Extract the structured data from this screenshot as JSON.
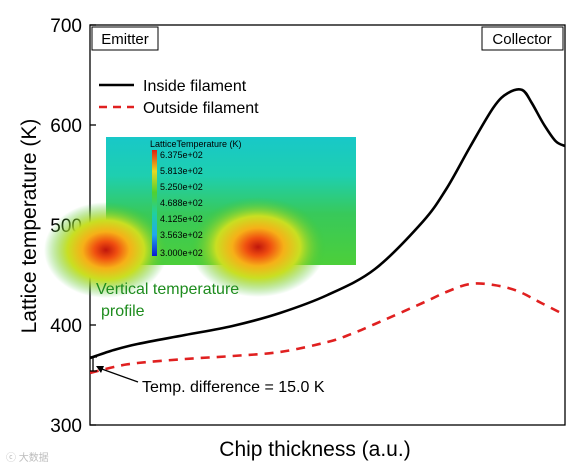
{
  "chart_data": {
    "type": "line",
    "title": "",
    "xlabel": "Chip thickness (a.u.)",
    "ylabel": "Lattice temperature (K)",
    "xlim": [
      0,
      1
    ],
    "ylim": [
      300,
      700
    ],
    "yticks": [
      300,
      400,
      500,
      600,
      700
    ],
    "x_tick_labels_shown": false,
    "legend": {
      "placement": "top-left",
      "entries": [
        "Inside filament",
        "Outside filament"
      ]
    },
    "series": [
      {
        "name": "Inside filament",
        "style": "solid",
        "color": "#000000",
        "x": [
          0,
          0.05,
          0.1,
          0.2,
          0.3,
          0.4,
          0.5,
          0.6,
          0.7,
          0.75,
          0.8,
          0.85,
          0.88,
          0.91,
          0.93,
          0.955,
          0.98,
          1.0
        ],
        "y": [
          367,
          375,
          381,
          390,
          399,
          412,
          430,
          456,
          503,
          536,
          578,
          618,
          632,
          635,
          622,
          601,
          584,
          579
        ]
      },
      {
        "name": "Outside filament",
        "style": "dashed",
        "color": "#e02020",
        "x": [
          0,
          0.05,
          0.1,
          0.2,
          0.3,
          0.4,
          0.5,
          0.55,
          0.6,
          0.7,
          0.75,
          0.8,
          0.85,
          0.9,
          0.95,
          1.0
        ],
        "y": [
          352,
          358,
          362,
          366,
          369,
          373,
          383,
          391,
          401,
          422,
          433,
          441,
          440,
          434,
          422,
          410
        ]
      }
    ],
    "annotations": {
      "emitter": "Emitter",
      "collector": "Collector",
      "green_label_line1": "Vertical temperature",
      "green_label_line2": "profile",
      "difference": "Temp. difference = 15.0 K"
    },
    "inset": {
      "title": "LatticeTemperature (K)",
      "colorbar_labels": [
        "6.375e+02",
        "5.813e+02",
        "5.250e+02",
        "4.688e+02",
        "4.125e+02",
        "3.563e+02",
        "3.000e+02"
      ]
    }
  },
  "watermark": "大数据"
}
